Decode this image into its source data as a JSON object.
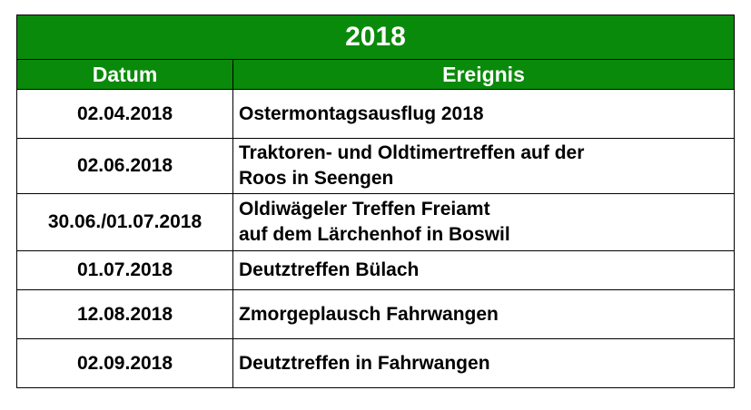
{
  "table": {
    "title": "2018",
    "headers": {
      "date": "Datum",
      "event": "Ereignis"
    },
    "rows": [
      {
        "date": "02.04.2018",
        "event_lines": [
          "Ostermontagsausflug 2018"
        ]
      },
      {
        "date": "02.06.2018",
        "event_lines": [
          "Traktoren- und Oldtimertreffen auf der",
          "Roos in Seengen"
        ]
      },
      {
        "date": "30.06./01.07.2018",
        "event_lines": [
          "Oldiwägeler Treffen Freiamt",
          "auf dem Lärchenhof in Boswil"
        ]
      },
      {
        "date": "01.07.2018",
        "event_lines": [
          "Deutztreffen Bülach"
        ]
      },
      {
        "date": "12.08.2018",
        "event_lines": [
          "Zmorgeplausch Fahrwangen"
        ]
      },
      {
        "date": "02.09.2018",
        "event_lines": [
          "Deutztreffen in Fahrwangen"
        ]
      }
    ],
    "colors": {
      "header_bg": "#0a8a0a",
      "header_text": "#ffffff",
      "border": "#000000"
    }
  }
}
